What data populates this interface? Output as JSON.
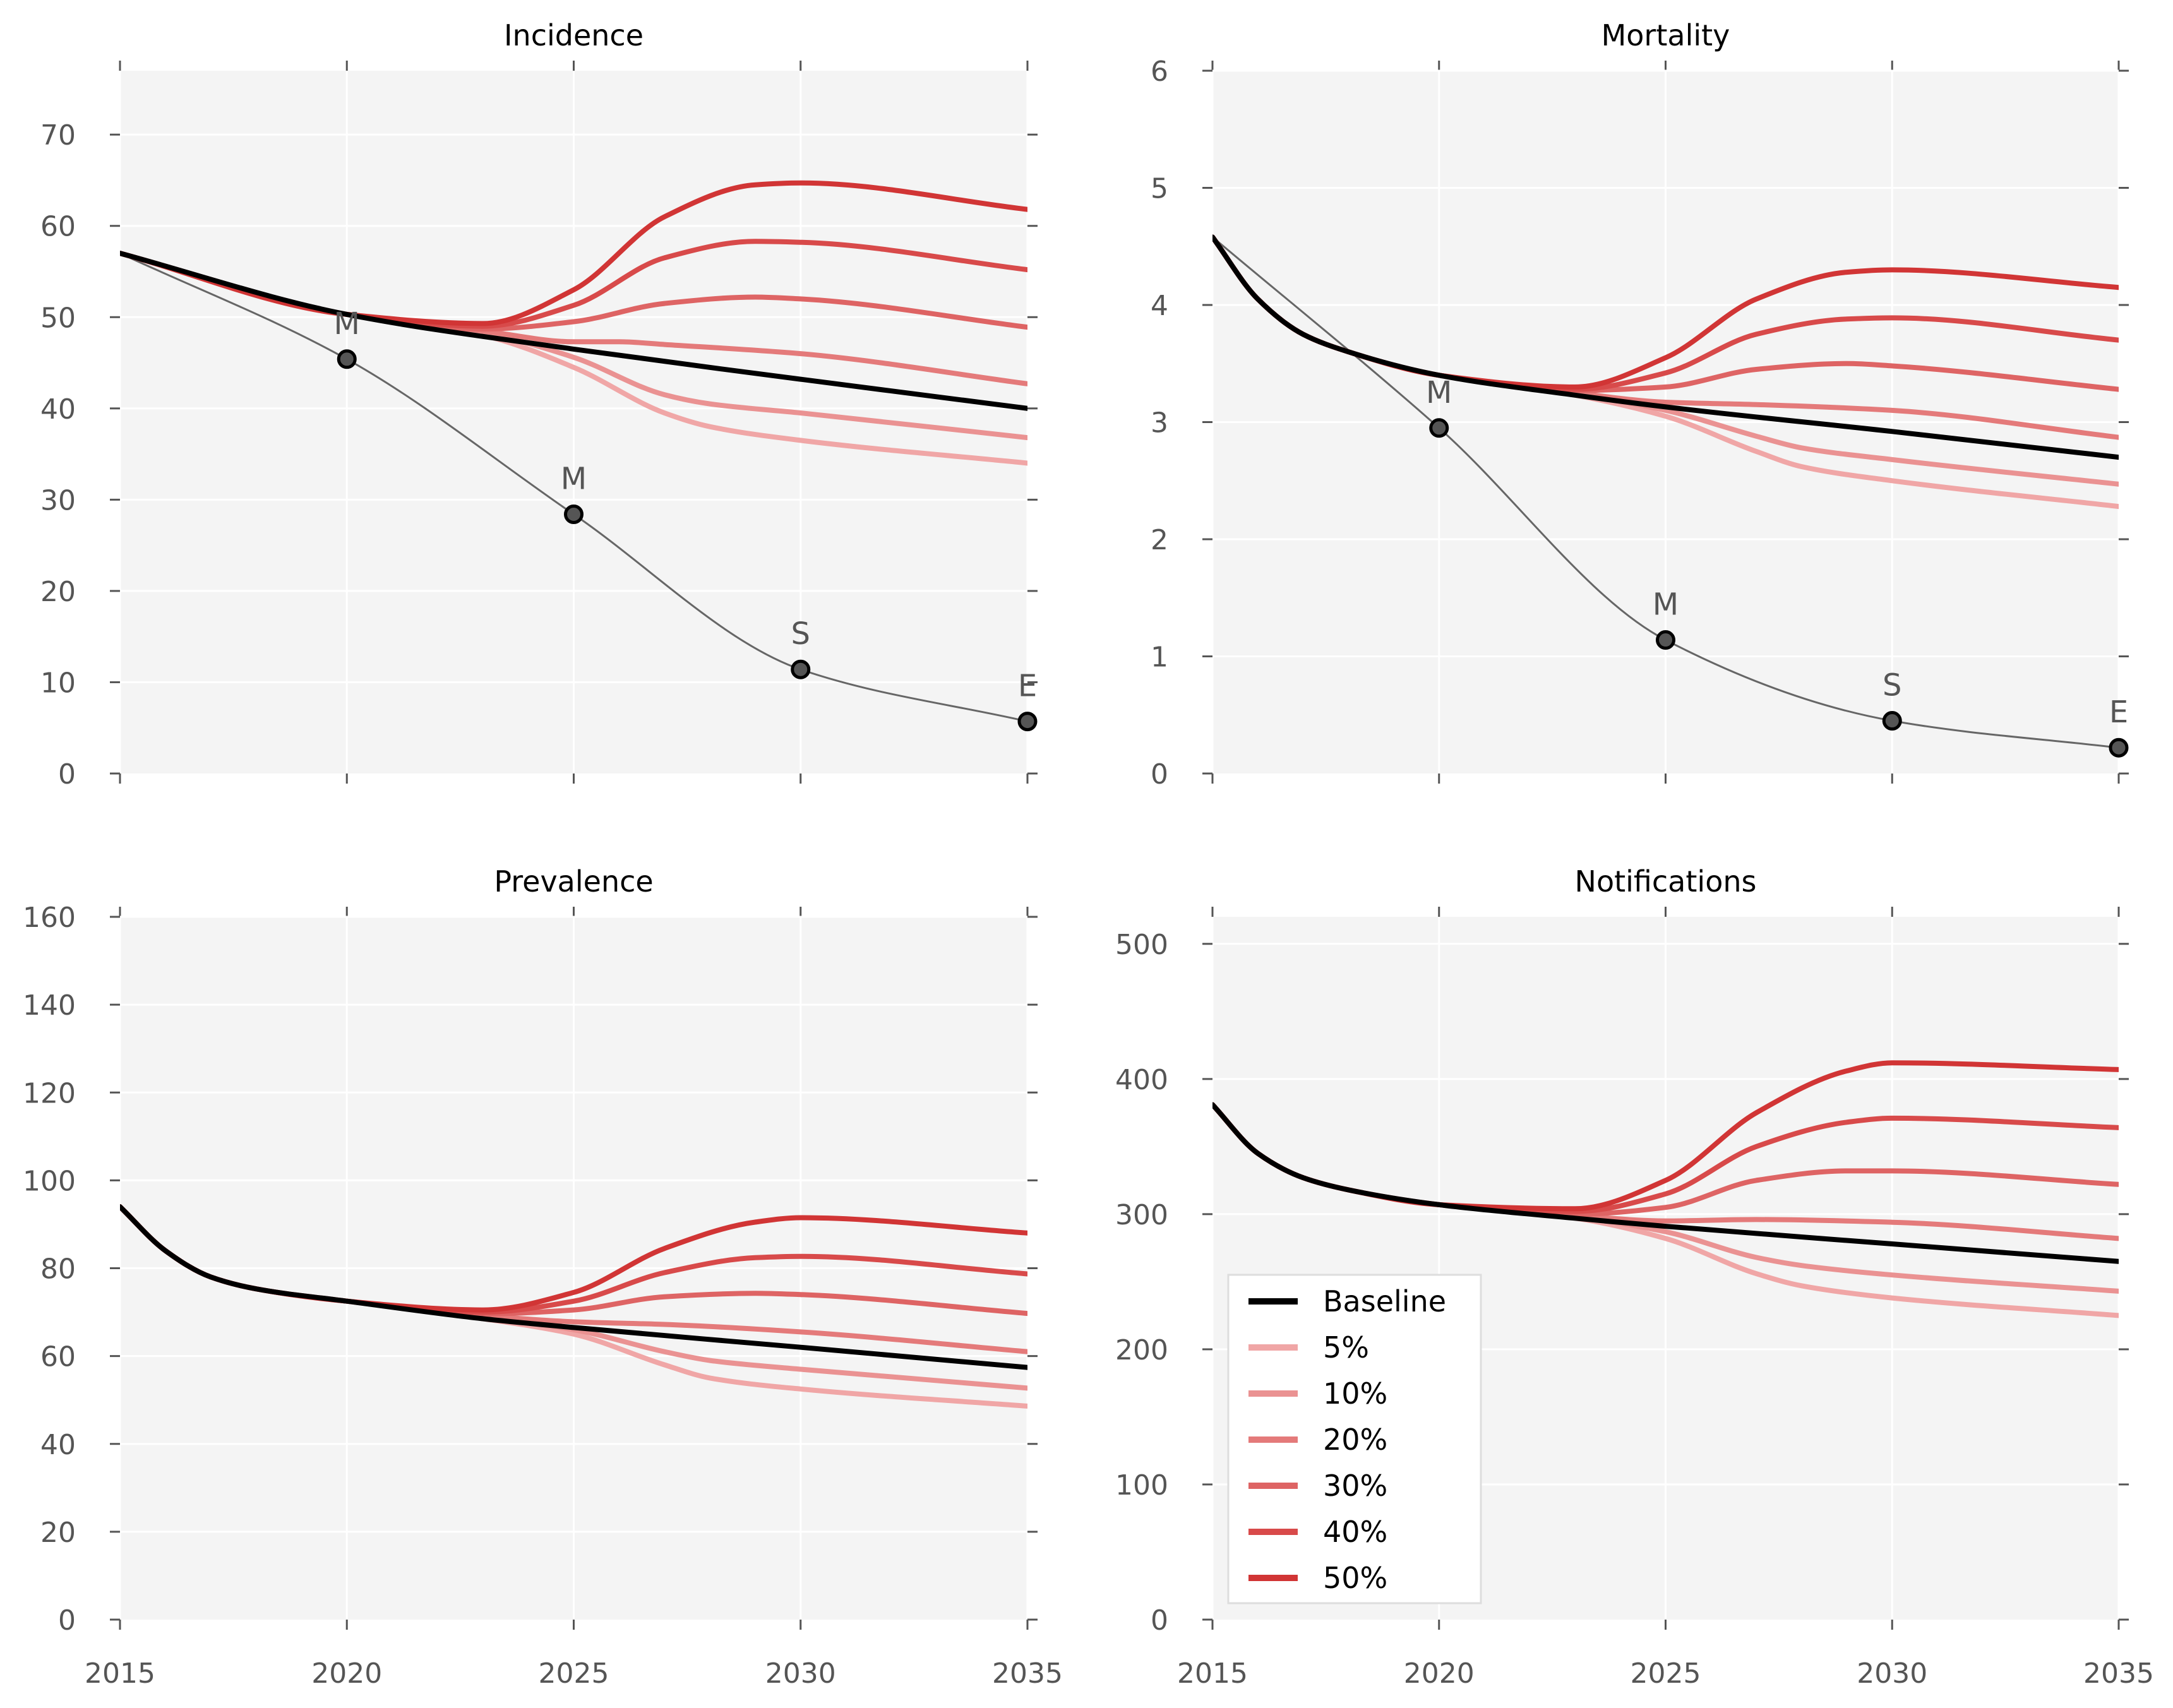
{
  "chart_data": [
    {
      "type": "line",
      "title": "Incidence",
      "xlim": [
        2015,
        2035
      ],
      "ylim": [
        0,
        77
      ],
      "xticks": [
        2015,
        2020,
        2025,
        2030,
        2035
      ],
      "yticks": [
        0,
        10,
        20,
        30,
        40,
        50,
        60,
        70
      ],
      "show_xticklabels": false,
      "baseline": {
        "name": "Baseline",
        "color": "#000000",
        "x": [
          2015,
          2020,
          2025,
          2030,
          2035
        ],
        "values": [
          57,
          50.3,
          46.5,
          43.2,
          40
        ]
      },
      "series": [
        {
          "name": "5%",
          "color": "#f0a6a6",
          "x": [
            2015,
            2020,
            2023,
            2025,
            2027,
            2028,
            2030,
            2035
          ],
          "values": [
            57,
            50.3,
            48,
            44.5,
            39.5,
            38,
            36.5,
            34
          ]
        },
        {
          "name": "10%",
          "color": "#ea9292",
          "x": [
            2015,
            2020,
            2023,
            2025,
            2027,
            2028,
            2030,
            2035
          ],
          "values": [
            57,
            50.3,
            48.3,
            45.6,
            41.5,
            40.5,
            39.5,
            36.8
          ]
        },
        {
          "name": "20%",
          "color": "#e47a7a",
          "x": [
            2015,
            2020,
            2023,
            2025,
            2026,
            2027,
            2030,
            2035
          ],
          "values": [
            57,
            50.3,
            48.5,
            47.3,
            47.3,
            47,
            46,
            42.7
          ]
        },
        {
          "name": "30%",
          "color": "#de6464",
          "x": [
            2015,
            2020,
            2023,
            2025,
            2027,
            2029,
            2030,
            2035
          ],
          "values": [
            57,
            50.3,
            48.7,
            49.5,
            51.5,
            52.2,
            52,
            48.9
          ]
        },
        {
          "name": "40%",
          "color": "#d84a4a",
          "x": [
            2015,
            2020,
            2023,
            2025,
            2027,
            2029,
            2030,
            2035
          ],
          "values": [
            57,
            50.3,
            49,
            51.3,
            56.5,
            58.3,
            58.2,
            55.2
          ]
        },
        {
          "name": "50%",
          "color": "#d13535",
          "x": [
            2015,
            2020,
            2023,
            2025,
            2027,
            2029,
            2030,
            2035
          ],
          "values": [
            57,
            50.3,
            49.3,
            53,
            61,
            64.5,
            64.7,
            61.8
          ]
        }
      ],
      "targets": {
        "x": [
          2015,
          2020,
          2025,
          2030,
          2035
        ],
        "values": [
          57,
          45.4,
          28.4,
          11.4,
          5.7
        ],
        "labels": [
          "M",
          "M",
          "S",
          "E"
        ]
      }
    },
    {
      "type": "line",
      "title": "Mortality",
      "xlim": [
        2015,
        2035
      ],
      "ylim": [
        0,
        6
      ],
      "xticks": [
        2015,
        2020,
        2025,
        2030,
        2035
      ],
      "yticks": [
        0,
        1,
        2,
        3,
        4,
        5,
        6
      ],
      "show_xticklabels": false,
      "baseline": {
        "name": "Baseline",
        "color": "#000000",
        "x": [
          2015,
          2016,
          2017,
          2018,
          2020,
          2023,
          2025,
          2030,
          2035
        ],
        "values": [
          4.58,
          4.05,
          3.75,
          3.6,
          3.4,
          3.23,
          3.13,
          2.92,
          2.7
        ]
      },
      "series": [
        {
          "name": "5%",
          "color": "#f0a6a6",
          "x": [
            2015,
            2016,
            2017,
            2018,
            2020,
            2023,
            2025,
            2027,
            2028,
            2030,
            2035
          ],
          "values": [
            4.58,
            4.05,
            3.75,
            3.6,
            3.4,
            3.23,
            3.05,
            2.75,
            2.62,
            2.5,
            2.28
          ]
        },
        {
          "name": "10%",
          "color": "#ea9292",
          "x": [
            2015,
            2016,
            2017,
            2018,
            2020,
            2023,
            2025,
            2027,
            2028,
            2030,
            2035
          ],
          "values": [
            4.58,
            4.05,
            3.75,
            3.6,
            3.4,
            3.24,
            3.1,
            2.88,
            2.78,
            2.68,
            2.47
          ]
        },
        {
          "name": "20%",
          "color": "#e47a7a",
          "x": [
            2015,
            2016,
            2017,
            2018,
            2020,
            2023,
            2025,
            2027,
            2030,
            2035
          ],
          "values": [
            4.58,
            4.05,
            3.75,
            3.6,
            3.4,
            3.25,
            3.17,
            3.15,
            3.1,
            2.87
          ]
        },
        {
          "name": "30%",
          "color": "#de6464",
          "x": [
            2015,
            2016,
            2017,
            2018,
            2020,
            2023,
            2025,
            2027,
            2029,
            2030,
            2035
          ],
          "values": [
            4.58,
            4.05,
            3.75,
            3.6,
            3.4,
            3.27,
            3.3,
            3.45,
            3.5,
            3.48,
            3.28
          ]
        },
        {
          "name": "40%",
          "color": "#d84a4a",
          "x": [
            2015,
            2016,
            2017,
            2018,
            2020,
            2023,
            2025,
            2027,
            2029,
            2030,
            2035
          ],
          "values": [
            4.58,
            4.05,
            3.75,
            3.6,
            3.4,
            3.28,
            3.42,
            3.75,
            3.88,
            3.89,
            3.7
          ]
        },
        {
          "name": "50%",
          "color": "#d13535",
          "x": [
            2015,
            2016,
            2017,
            2018,
            2020,
            2023,
            2025,
            2027,
            2029,
            2030,
            2035
          ],
          "values": [
            4.58,
            4.05,
            3.75,
            3.6,
            3.4,
            3.3,
            3.55,
            4.05,
            4.28,
            4.3,
            4.15
          ]
        }
      ],
      "targets": {
        "x": [
          2015,
          2020,
          2025,
          2030,
          2035
        ],
        "values": [
          4.58,
          2.95,
          1.14,
          0.45,
          0.22
        ],
        "labels": [
          "M",
          "M",
          "S",
          "E"
        ]
      }
    },
    {
      "type": "line",
      "title": "Prevalence",
      "xlim": [
        2015,
        2035
      ],
      "ylim": [
        0,
        160
      ],
      "xticks": [
        2015,
        2020,
        2025,
        2030,
        2035
      ],
      "yticks": [
        0,
        20,
        40,
        60,
        80,
        100,
        120,
        140,
        160
      ],
      "show_xticklabels": true,
      "baseline": {
        "name": "Baseline",
        "color": "#000000",
        "x": [
          2015,
          2016,
          2017,
          2018,
          2020,
          2023,
          2025,
          2030,
          2035
        ],
        "values": [
          94,
          84,
          78,
          75.3,
          72.5,
          68.5,
          66.5,
          62,
          57.4
        ]
      },
      "series": [
        {
          "name": "5%",
          "color": "#f0a6a6",
          "x": [
            2015,
            2016,
            2017,
            2018,
            2020,
            2023,
            2025,
            2027,
            2028,
            2030,
            2035
          ],
          "values": [
            94,
            84,
            78,
            75.3,
            72.5,
            68.5,
            65,
            58,
            55,
            52.5,
            48.6
          ]
        },
        {
          "name": "10%",
          "color": "#ea9292",
          "x": [
            2015,
            2016,
            2017,
            2018,
            2020,
            2023,
            2025,
            2027,
            2028,
            2030,
            2035
          ],
          "values": [
            94,
            84,
            78,
            75.3,
            72.5,
            68.8,
            66,
            61,
            59,
            57,
            52.7
          ]
        },
        {
          "name": "20%",
          "color": "#e47a7a",
          "x": [
            2015,
            2016,
            2017,
            2018,
            2020,
            2023,
            2025,
            2027,
            2030,
            2035
          ],
          "values": [
            94,
            84,
            78,
            75.3,
            72.5,
            69.2,
            67.8,
            67.2,
            65.5,
            61
          ]
        },
        {
          "name": "30%",
          "color": "#de6464",
          "x": [
            2015,
            2016,
            2017,
            2018,
            2020,
            2023,
            2025,
            2027,
            2029,
            2030,
            2035
          ],
          "values": [
            94,
            84,
            78,
            75.3,
            72.5,
            69.6,
            70.5,
            73.5,
            74.3,
            74,
            69.7
          ]
        },
        {
          "name": "40%",
          "color": "#d84a4a",
          "x": [
            2015,
            2016,
            2017,
            2018,
            2020,
            2023,
            2025,
            2027,
            2029,
            2030,
            2035
          ],
          "values": [
            94,
            84,
            78,
            75.3,
            72.5,
            70,
            72.5,
            79,
            82.4,
            82.7,
            78.7
          ]
        },
        {
          "name": "50%",
          "color": "#d13535",
          "x": [
            2015,
            2016,
            2017,
            2018,
            2020,
            2023,
            2025,
            2027,
            2029,
            2030,
            2035
          ],
          "values": [
            94,
            84,
            78,
            75.3,
            72.5,
            70.5,
            74.5,
            84.5,
            90.5,
            91.5,
            88
          ]
        }
      ]
    },
    {
      "type": "line",
      "title": "Notifications",
      "xlim": [
        2015,
        2035
      ],
      "ylim": [
        0,
        520
      ],
      "xticks": [
        2015,
        2020,
        2025,
        2030,
        2035
      ],
      "yticks": [
        0,
        100,
        200,
        300,
        400,
        500
      ],
      "show_xticklabels": true,
      "legend_position": "lower-left",
      "baseline": {
        "name": "Baseline",
        "color": "#000000",
        "x": [
          2015,
          2016,
          2017,
          2018,
          2020,
          2023,
          2025,
          2030,
          2035
        ],
        "values": [
          381,
          345,
          327,
          318,
          307,
          297,
          291,
          278,
          265
        ]
      },
      "series": [
        {
          "name": "5%",
          "color": "#f0a6a6",
          "x": [
            2015,
            2016,
            2017,
            2018,
            2020,
            2023,
            2025,
            2027,
            2028,
            2030,
            2035
          ],
          "values": [
            381,
            345,
            327,
            318,
            307,
            297,
            282,
            256,
            247,
            238,
            225
          ]
        },
        {
          "name": "10%",
          "color": "#ea9292",
          "x": [
            2015,
            2016,
            2017,
            2018,
            2020,
            2023,
            2025,
            2027,
            2028,
            2030,
            2035
          ],
          "values": [
            381,
            345,
            327,
            318,
            307,
            298,
            287,
            268,
            262,
            255,
            243
          ]
        },
        {
          "name": "20%",
          "color": "#e47a7a",
          "x": [
            2015,
            2016,
            2017,
            2018,
            2020,
            2023,
            2025,
            2027,
            2030,
            2035
          ],
          "values": [
            381,
            345,
            327,
            318,
            307,
            299,
            295,
            296,
            294,
            282
          ]
        },
        {
          "name": "30%",
          "color": "#de6464",
          "x": [
            2015,
            2016,
            2017,
            2018,
            2020,
            2023,
            2025,
            2027,
            2029,
            2030,
            2035
          ],
          "values": [
            381,
            345,
            327,
            318,
            307,
            300,
            305,
            325,
            332,
            332,
            322
          ]
        },
        {
          "name": "40%",
          "color": "#d84a4a",
          "x": [
            2015,
            2016,
            2017,
            2018,
            2020,
            2023,
            2025,
            2027,
            2029,
            2030,
            2035
          ],
          "values": [
            381,
            345,
            327,
            318,
            307,
            302,
            315,
            350,
            368,
            371,
            364
          ]
        },
        {
          "name": "50%",
          "color": "#d13535",
          "x": [
            2015,
            2016,
            2017,
            2018,
            2020,
            2023,
            2025,
            2027,
            2029,
            2030,
            2035
          ],
          "values": [
            381,
            345,
            327,
            318,
            307,
            304,
            325,
            375,
            406,
            412,
            407
          ]
        }
      ]
    }
  ],
  "legend": {
    "entries": [
      {
        "label": "Baseline",
        "color": "#000000"
      },
      {
        "label": "5%",
        "color": "#f0a6a6"
      },
      {
        "label": "10%",
        "color": "#ea9292"
      },
      {
        "label": "20%",
        "color": "#e47a7a"
      },
      {
        "label": "30%",
        "color": "#de6464"
      },
      {
        "label": "40%",
        "color": "#d84a4a"
      },
      {
        "label": "50%",
        "color": "#d13535"
      }
    ]
  },
  "colors": {
    "panel_bg": "#f4f4f4",
    "grid": "#ffffff",
    "target_line": "#666666",
    "target_marker": "#555555"
  }
}
